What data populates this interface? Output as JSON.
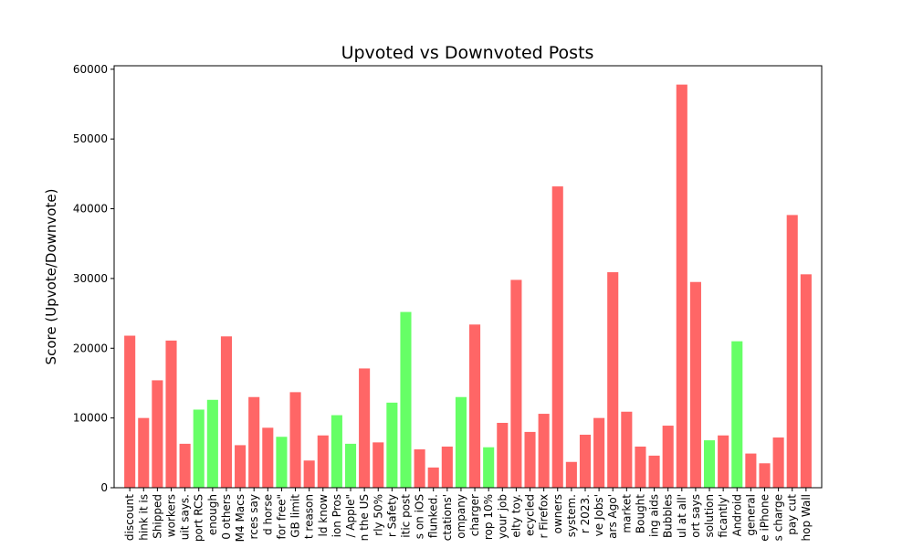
{
  "chart_data": {
    "type": "bar",
    "title": "Upvoted vs Downvoted Posts",
    "xlabel": "",
    "ylabel": "Score (Upvote/Downvote)",
    "ylim": [
      0,
      60500
    ],
    "yticks": [
      0,
      10000,
      20000,
      30000,
      40000,
      50000,
      60000
    ],
    "ytick_labels": [
      "0",
      "10000",
      "20000",
      "30000",
      "40000",
      "50000",
      "60000"
    ],
    "grid": false,
    "colors": {
      "upvoted": "#66ff66",
      "downvoted": "#ff6666"
    },
    "categories": [
      "discount",
      "hink it is",
      "Shipped",
      "workers",
      "uit says.",
      "port RCS",
      "enough",
      "0 others",
      "M4 Macs",
      "rces say",
      "d horse",
      "for free\"",
      "GB limit",
      "t reason",
      "ld know",
      "ion Pros",
      "/ Apple\"",
      "n the US",
      "rly 50%",
      "r Safety",
      "itic post",
      "s on iOS",
      "flunked.",
      "ctations'",
      "ompany",
      "charger",
      "rop 10%",
      "your job",
      "elty toy.",
      "ecycled",
      "r Firefox",
      "owners",
      "system.",
      "r 2023.",
      "ve Jobs'",
      "ars Ago'",
      "market",
      "Bought",
      "ing aids",
      "Bubbles",
      "ul at all'",
      "ort says",
      "solution",
      "ficantly'",
      "Android",
      "general",
      "e iPhone",
      "s charge",
      "pay cut",
      "hop Wall"
    ],
    "values": [
      21800,
      10000,
      15400,
      21100,
      6300,
      11200,
      12600,
      21700,
      6100,
      13000,
      8600,
      7300,
      13700,
      3900,
      7500,
      10400,
      6300,
      17100,
      6500,
      12200,
      25200,
      5500,
      2900,
      5900,
      13000,
      23400,
      5800,
      9300,
      29800,
      8000,
      10600,
      43200,
      3700,
      7600,
      10000,
      30900,
      10900,
      5900,
      4600,
      8900,
      57800,
      29500,
      6800,
      7500,
      21000,
      4900,
      3500,
      7200,
      39100,
      30600
    ],
    "bar_colors": [
      "#ff6666",
      "#ff6666",
      "#ff6666",
      "#ff6666",
      "#ff6666",
      "#66ff66",
      "#66ff66",
      "#ff6666",
      "#ff6666",
      "#ff6666",
      "#ff6666",
      "#66ff66",
      "#ff6666",
      "#ff6666",
      "#ff6666",
      "#66ff66",
      "#66ff66",
      "#ff6666",
      "#ff6666",
      "#66ff66",
      "#66ff66",
      "#ff6666",
      "#ff6666",
      "#ff6666",
      "#66ff66",
      "#ff6666",
      "#66ff66",
      "#ff6666",
      "#ff6666",
      "#ff6666",
      "#ff6666",
      "#ff6666",
      "#ff6666",
      "#ff6666",
      "#ff6666",
      "#ff6666",
      "#ff6666",
      "#ff6666",
      "#ff6666",
      "#ff6666",
      "#ff6666",
      "#ff6666",
      "#66ff66",
      "#ff6666",
      "#66ff66",
      "#ff6666",
      "#ff6666",
      "#ff6666",
      "#ff6666",
      "#ff6666"
    ]
  }
}
